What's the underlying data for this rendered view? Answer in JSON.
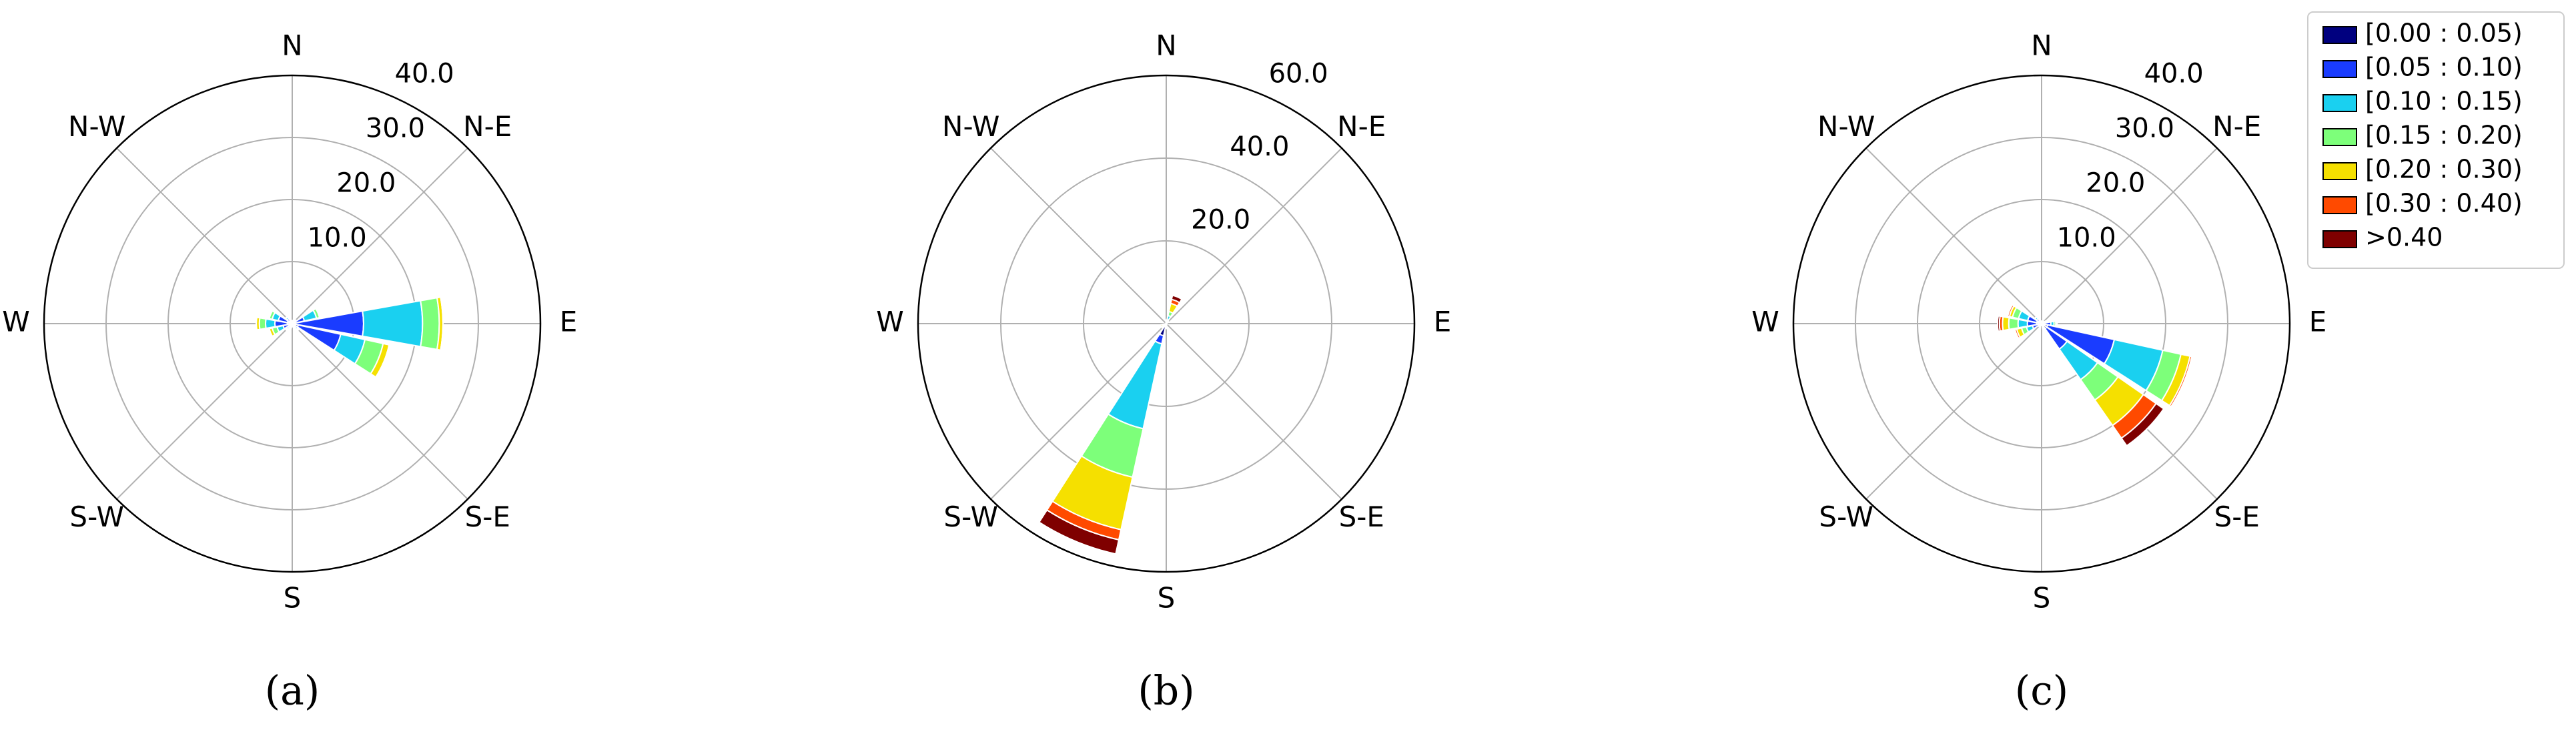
{
  "chart_data": [
    {
      "type": "windrose",
      "caption": "(a)",
      "categories": [
        "N",
        null,
        "N-E",
        null,
        "E",
        null,
        "S-E",
        null,
        "S",
        null,
        "S-W",
        null,
        "W",
        null,
        "N-W",
        null
      ],
      "rlim": [
        0,
        40
      ],
      "rticks": [
        {
          "value": 10,
          "label": "10.0"
        },
        {
          "value": 20,
          "label": "20.0"
        },
        {
          "value": 30,
          "label": "30.0"
        },
        {
          "value": 40,
          "label": "40.0"
        }
      ],
      "series": [
        {
          "color": "#00007f",
          "values": [
            0.2,
            0.2,
            0.2,
            0.5,
            0.5,
            1,
            0.3,
            0.2,
            0.2,
            0.2,
            0.3,
            0.5,
            0.8,
            0.8,
            0.5,
            0.2
          ]
        },
        {
          "color": "#1a3cff",
          "values": [
            0.2,
            0.2,
            0.3,
            1.5,
            11,
            7,
            0.5,
            0.2,
            0.2,
            0.3,
            0.5,
            1,
            2,
            1.5,
            0.5,
            0.2
          ]
        },
        {
          "color": "#1ad0f0",
          "values": [
            0.1,
            0.1,
            0.2,
            2,
            9.5,
            4,
            0.3,
            0.1,
            0.1,
            0.2,
            0.3,
            1,
            1.5,
            1,
            0.3,
            0.1
          ]
        },
        {
          "color": "#7dff7a",
          "values": [
            0,
            0,
            0.1,
            0.5,
            2.7,
            3,
            0.2,
            0,
            0,
            0.1,
            0.2,
            0.8,
            1,
            0.5,
            0.1,
            0
          ]
        },
        {
          "color": "#f5e000",
          "values": [
            0,
            0,
            0,
            0.2,
            0.6,
            1,
            0.1,
            0,
            0,
            0,
            0.1,
            0.5,
            0.5,
            0.2,
            0,
            0
          ]
        },
        {
          "color": "#ff4a00",
          "values": [
            0,
            0,
            0,
            0,
            0,
            0,
            0,
            0,
            0,
            0,
            0,
            0,
            0,
            0,
            0,
            0
          ]
        },
        {
          "color": "#7f0000",
          "values": [
            0,
            0,
            0,
            0,
            0,
            0,
            0,
            0,
            0,
            0,
            0,
            0,
            0,
            0,
            0,
            0
          ]
        }
      ]
    },
    {
      "type": "windrose",
      "caption": "(b)",
      "categories": [
        "N",
        null,
        "N-E",
        null,
        "E",
        null,
        "S-E",
        null,
        "S",
        null,
        "S-W",
        null,
        "W",
        null,
        "N-W",
        null
      ],
      "rlim": [
        0,
        60
      ],
      "rticks": [
        {
          "value": 20,
          "label": "20.0"
        },
        {
          "value": 40,
          "label": "40.0"
        },
        {
          "value": 60,
          "label": "60.0"
        }
      ],
      "series": [
        {
          "color": "#00007f",
          "values": [
            0.2,
            0.5,
            0.2,
            0,
            0,
            0,
            0,
            0.2,
            0.5,
            3,
            0.3,
            0.2,
            0,
            0,
            0,
            0
          ]
        },
        {
          "color": "#1a3cff",
          "values": [
            0.1,
            0.5,
            0.2,
            0,
            0,
            0,
            0,
            0.1,
            0.3,
            2,
            0.2,
            0.2,
            0,
            0,
            0,
            0
          ]
        },
        {
          "color": "#1ad0f0",
          "values": [
            0.1,
            1,
            0.1,
            0,
            0,
            0,
            0,
            0,
            0.2,
            21,
            0.2,
            0.2,
            0,
            0,
            0,
            0
          ]
        },
        {
          "color": "#7dff7a",
          "values": [
            0.1,
            1,
            0.1,
            0,
            0,
            0,
            0,
            0,
            0.1,
            12,
            0.2,
            0.3,
            0,
            0,
            0,
            0
          ]
        },
        {
          "color": "#f5e000",
          "values": [
            0.2,
            2,
            0.1,
            0,
            0,
            0,
            0,
            0,
            0.1,
            13,
            0.3,
            0.5,
            0,
            0,
            0,
            0
          ]
        },
        {
          "color": "#ff4a00",
          "values": [
            0.1,
            1,
            0,
            0,
            0,
            0,
            0,
            0,
            0,
            2.5,
            0.1,
            0.2,
            0,
            0,
            0,
            0
          ]
        },
        {
          "color": "#7f0000",
          "values": [
            0.1,
            1,
            0,
            0,
            0,
            0,
            0,
            0,
            0,
            3.5,
            0.1,
            0.1,
            0,
            0,
            0,
            0
          ]
        }
      ]
    },
    {
      "type": "windrose",
      "caption": "(c)",
      "legend": "upper right",
      "categories": [
        "N",
        null,
        "N-E",
        null,
        "E",
        null,
        "S-E",
        null,
        "S",
        null,
        "S-W",
        null,
        "W",
        null,
        "N-W",
        null
      ],
      "rlim": [
        0,
        40
      ],
      "rticks": [
        {
          "value": 10,
          "label": "10.0"
        },
        {
          "value": 20,
          "label": "20.0"
        },
        {
          "value": 30,
          "label": "30.0"
        },
        {
          "value": 40,
          "label": "40.0"
        }
      ],
      "series": [
        {
          "name": "[0.00 : 0.05)",
          "color": "#00007f",
          "values": [
            0.2,
            0.2,
            0.2,
            0.3,
            0.5,
            1,
            1,
            0.3,
            0.2,
            0.2,
            0.2,
            0.5,
            0.8,
            0.8,
            0.5,
            0.2
          ]
        },
        {
          "name": "[0.05 : 0.10)",
          "color": "#1a3cff",
          "values": [
            0.1,
            0.1,
            0.2,
            0.3,
            1,
            11,
            4,
            0.3,
            0.1,
            0.1,
            0.2,
            1,
            1.5,
            1.5,
            0.5,
            0.1
          ]
        },
        {
          "name": "[0.10 : 0.15)",
          "color": "#1ad0f0",
          "values": [
            0.1,
            0,
            0.1,
            0.2,
            0.5,
            8,
            6,
            0.2,
            0,
            0,
            0.1,
            1,
            1.5,
            1.5,
            0.3,
            0
          ]
        },
        {
          "name": "[0.15 : 0.20)",
          "color": "#7dff7a",
          "values": [
            0,
            0,
            0,
            0.1,
            0.3,
            3,
            4,
            0.1,
            0,
            0,
            0.1,
            0.8,
            1.5,
            1,
            0.1,
            0
          ]
        },
        {
          "name": "[0.20 : 0.30)",
          "color": "#f5e000",
          "values": [
            0,
            0,
            0,
            0,
            0.2,
            1.5,
            5,
            0.1,
            0,
            0,
            0,
            0.8,
            1,
            0.5,
            0,
            0
          ]
        },
        {
          "name": "[0.30 : 0.40)",
          "color": "#ff4a00",
          "values": [
            0,
            0,
            0,
            0,
            0,
            0.3,
            2.5,
            0,
            0,
            0,
            0,
            0.3,
            0.5,
            0.3,
            0,
            0
          ]
        },
        {
          "name": ">0.40",
          "color": "#7f0000",
          "values": [
            0,
            0,
            0,
            0,
            0,
            0,
            1.5,
            0,
            0,
            0,
            0,
            0.2,
            0.3,
            0.2,
            0,
            0
          ]
        }
      ]
    }
  ]
}
